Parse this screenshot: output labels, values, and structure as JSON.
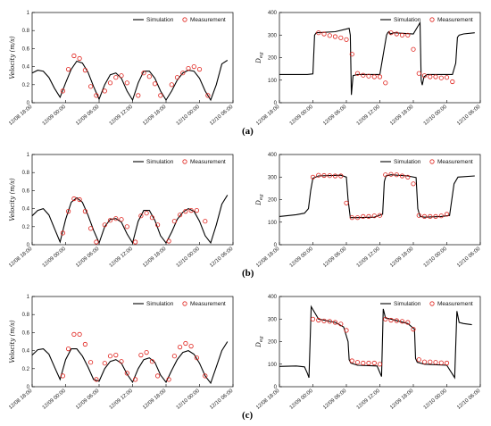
{
  "time_labels": [
    "12/08 18:00",
    "12/09 00:00",
    "12/09 06:00",
    "12/09 12:00",
    "12/09 18:00",
    "12/10 00:00",
    "12/10 06:00"
  ],
  "legend": {
    "simulation": "Simulation",
    "measurement": "Measurement"
  },
  "ylabels": {
    "velocity": "Velocity (m/s)",
    "direction": "D_eg"
  },
  "rows": [
    {
      "label": "(a)"
    },
    {
      "label": "(b)"
    },
    {
      "label": "(c)"
    }
  ],
  "chart_data": [
    {
      "id": "a-velocity",
      "type": "line",
      "xlabel": "",
      "ylabel": "Velocity (m/s)",
      "xticks": [
        "12/08 18:00",
        "12/09 00:00",
        "12/09 06:00",
        "12/09 12:00",
        "12/09 18:00",
        "12/10 00:00",
        "12/10 06:00"
      ],
      "xlim": [
        0,
        36
      ],
      "ylim": [
        0,
        1
      ],
      "yticks": [
        0,
        0.2,
        0.4,
        0.6,
        0.8,
        1
      ],
      "series": [
        {
          "name": "Simulation",
          "style": "line",
          "x": [
            0,
            1,
            2,
            3,
            4,
            5,
            6,
            7,
            8,
            9,
            10,
            11,
            12,
            13,
            14,
            15,
            16,
            17,
            18,
            19,
            20,
            21,
            22,
            23,
            24,
            25,
            26,
            27,
            28,
            29,
            30,
            31,
            32,
            33,
            34,
            35
          ],
          "y": [
            0.33,
            0.36,
            0.35,
            0.28,
            0.16,
            0.06,
            0.22,
            0.37,
            0.46,
            0.44,
            0.34,
            0.18,
            0.04,
            0.2,
            0.31,
            0.33,
            0.27,
            0.13,
            0.03,
            0.22,
            0.35,
            0.35,
            0.27,
            0.13,
            0.03,
            0.13,
            0.25,
            0.33,
            0.36,
            0.35,
            0.27,
            0.13,
            0.03,
            0.2,
            0.43,
            0.47
          ]
        },
        {
          "name": "Measurement",
          "style": "markers",
          "x": [
            5.5,
            6.5,
            7.5,
            8.5,
            9.5,
            10.5,
            11.5,
            13,
            14,
            15,
            16,
            17,
            19,
            20,
            21,
            22,
            23,
            25,
            26,
            27,
            28,
            29,
            30,
            31.5
          ],
          "y": [
            0.13,
            0.37,
            0.52,
            0.49,
            0.36,
            0.18,
            0.08,
            0.13,
            0.22,
            0.28,
            0.3,
            0.22,
            0.08,
            0.33,
            0.29,
            0.21,
            0.08,
            0.2,
            0.28,
            0.33,
            0.38,
            0.4,
            0.37,
            0.08
          ]
        }
      ]
    },
    {
      "id": "a-direction",
      "type": "line",
      "xlabel": "",
      "ylabel": "D_eg",
      "xticks": [
        "12/08 18:00",
        "12/09 00:00",
        "12/09 06:00",
        "12/09 12:00",
        "12/09 18:00",
        "12/10 00:00",
        "12/10 06:00"
      ],
      "xlim": [
        0,
        36
      ],
      "ylim": [
        0,
        400
      ],
      "yticks": [
        0,
        100,
        200,
        300,
        400
      ],
      "series": [
        {
          "name": "Simulation",
          "style": "line",
          "x": [
            0,
            5,
            6,
            6.3,
            6.6,
            10,
            12.5,
            12.7,
            12.9,
            13.2,
            14,
            18,
            19.2,
            19.4,
            19.6,
            19.9,
            20.5,
            24,
            25.2,
            25.4,
            25.6,
            25.9,
            26.5,
            31,
            31.6,
            31.9,
            32.2,
            33,
            35
          ],
          "y": [
            125,
            125,
            128,
            300,
            310,
            315,
            330,
            300,
            35,
            120,
            125,
            125,
            300,
            310,
            315,
            305,
            310,
            305,
            355,
            100,
            78,
            115,
            125,
            125,
            175,
            290,
            300,
            305,
            310
          ]
        },
        {
          "name": "Measurement",
          "style": "markers",
          "x": [
            7,
            8,
            9,
            10,
            11,
            12,
            13,
            14,
            15,
            16,
            17,
            18,
            19,
            20,
            21,
            22,
            23,
            24,
            25,
            26,
            27,
            28,
            29,
            30,
            31
          ],
          "y": [
            310,
            305,
            298,
            293,
            288,
            280,
            215,
            130,
            122,
            118,
            115,
            115,
            88,
            310,
            305,
            300,
            300,
            237,
            130,
            120,
            115,
            115,
            110,
            112,
            93
          ]
        }
      ]
    },
    {
      "id": "b-velocity",
      "type": "line",
      "xlabel": "",
      "ylabel": "Velocity (m/s)",
      "xticks": [
        "12/08 18:00",
        "12/09 00:00",
        "12/09 06:00",
        "12/09 12:00",
        "12/09 18:00",
        "12/10 00:00",
        "12/10 06:00"
      ],
      "xlim": [
        0,
        36
      ],
      "ylim": [
        0,
        1
      ],
      "yticks": [
        0,
        0.2,
        0.4,
        0.6,
        0.8,
        1
      ],
      "series": [
        {
          "name": "Simulation",
          "style": "line",
          "x": [
            0,
            1,
            2,
            3,
            4,
            5,
            6,
            7,
            8,
            9,
            10,
            11,
            12,
            13,
            14,
            15,
            16,
            17,
            18,
            19,
            20,
            21,
            22,
            23,
            24,
            25,
            26,
            27,
            28,
            29,
            30,
            31,
            32,
            33,
            34,
            35
          ],
          "y": [
            0.32,
            0.38,
            0.4,
            0.33,
            0.18,
            0.03,
            0.28,
            0.47,
            0.52,
            0.47,
            0.33,
            0.16,
            0.02,
            0.2,
            0.28,
            0.29,
            0.25,
            0.12,
            0.02,
            0.26,
            0.38,
            0.38,
            0.27,
            0.1,
            0.02,
            0.14,
            0.28,
            0.36,
            0.4,
            0.37,
            0.26,
            0.1,
            0.02,
            0.22,
            0.45,
            0.55
          ]
        },
        {
          "name": "Measurement",
          "style": "markers",
          "x": [
            5.5,
            6.5,
            7.5,
            8.5,
            9.5,
            10.5,
            11.5,
            13,
            14,
            15,
            16,
            17,
            18.5,
            19.5,
            20.5,
            21.5,
            22.5,
            24.5,
            25.5,
            26.5,
            27.5,
            28.5,
            29.5,
            31
          ],
          "y": [
            0.13,
            0.37,
            0.51,
            0.5,
            0.37,
            0.18,
            0.03,
            0.22,
            0.27,
            0.29,
            0.28,
            0.2,
            0.03,
            0.32,
            0.35,
            0.3,
            0.22,
            0.04,
            0.26,
            0.33,
            0.37,
            0.38,
            0.38,
            0.26
          ]
        }
      ]
    },
    {
      "id": "b-direction",
      "type": "line",
      "xlabel": "",
      "ylabel": "D_eg",
      "xticks": [
        "12/08 18:00",
        "12/09 00:00",
        "12/09 06:00",
        "12/09 12:00",
        "12/09 18:00",
        "12/10 00:00",
        "12/10 06:00"
      ],
      "xlim": [
        0,
        36
      ],
      "ylim": [
        0,
        400
      ],
      "yticks": [
        0,
        100,
        200,
        300,
        400
      ],
      "series": [
        {
          "name": "Simulation",
          "style": "line",
          "x": [
            0,
            3,
            4.5,
            5.2,
            5.6,
            6,
            7,
            11,
            12,
            12.3,
            12.7,
            14,
            17,
            18.5,
            18.8,
            19.1,
            20,
            23,
            24.5,
            24.8,
            25.2,
            26,
            29,
            30.5,
            31.3,
            32,
            35
          ],
          "y": [
            125,
            133,
            140,
            160,
            240,
            295,
            305,
            308,
            300,
            200,
            120,
            120,
            122,
            135,
            280,
            305,
            310,
            305,
            298,
            160,
            125,
            122,
            125,
            130,
            270,
            300,
            305
          ]
        },
        {
          "name": "Measurement",
          "style": "markers",
          "x": [
            6,
            7,
            8,
            9,
            10,
            11,
            12,
            13,
            14,
            15,
            16,
            17,
            18,
            19,
            20,
            21,
            22,
            23,
            24,
            25,
            26,
            27,
            28,
            29,
            30
          ],
          "y": [
            300,
            308,
            307,
            306,
            305,
            305,
            185,
            120,
            120,
            125,
            125,
            128,
            130,
            310,
            312,
            310,
            305,
            300,
            270,
            130,
            125,
            125,
            125,
            128,
            135
          ]
        }
      ]
    },
    {
      "id": "c-velocity",
      "type": "line",
      "xlabel": "",
      "ylabel": "Velocity (m/s)",
      "xticks": [
        "12/08 18:00",
        "12/09 00:00",
        "12/09 06:00",
        "12/09 12:00",
        "12/09 18:00",
        "12/10 00:00",
        "12/10 06:00"
      ],
      "xlim": [
        0,
        36
      ],
      "ylim": [
        0,
        1
      ],
      "yticks": [
        0,
        0.2,
        0.4,
        0.6,
        0.8,
        1
      ],
      "series": [
        {
          "name": "Simulation",
          "style": "line",
          "x": [
            0,
            1,
            2,
            3,
            4,
            5,
            6,
            7,
            8,
            9,
            10,
            11,
            12,
            13,
            14,
            15,
            16,
            17,
            18,
            19,
            20,
            21,
            22,
            23,
            24,
            25,
            26,
            27,
            28,
            29,
            30,
            31,
            32,
            33,
            34,
            35
          ],
          "y": [
            0.35,
            0.41,
            0.42,
            0.36,
            0.22,
            0.08,
            0.3,
            0.42,
            0.42,
            0.34,
            0.22,
            0.08,
            0.06,
            0.2,
            0.28,
            0.3,
            0.26,
            0.14,
            0.05,
            0.2,
            0.3,
            0.32,
            0.27,
            0.13,
            0.05,
            0.18,
            0.3,
            0.38,
            0.4,
            0.36,
            0.26,
            0.12,
            0.04,
            0.22,
            0.4,
            0.5
          ]
        },
        {
          "name": "Measurement",
          "style": "markers",
          "x": [
            5.5,
            6.5,
            7.5,
            8.5,
            9.5,
            10.5,
            11.5,
            13,
            14,
            15,
            16,
            17,
            18.5,
            19.5,
            20.5,
            21.5,
            22.5,
            24.5,
            25.5,
            26.5,
            27.5,
            28.5,
            29.5,
            31
          ],
          "y": [
            0.12,
            0.42,
            0.58,
            0.58,
            0.47,
            0.27,
            0.08,
            0.26,
            0.34,
            0.35,
            0.28,
            0.15,
            0.08,
            0.35,
            0.38,
            0.28,
            0.12,
            0.08,
            0.34,
            0.44,
            0.48,
            0.45,
            0.32,
            0.12
          ]
        }
      ]
    },
    {
      "id": "c-direction",
      "type": "line",
      "xlabel": "",
      "ylabel": "D_eg",
      "xticks": [
        "12/08 18:00",
        "12/09 00:00",
        "12/09 06:00",
        "12/09 12:00",
        "12/09 18:00",
        "12/10 00:00",
        "12/10 06:00"
      ],
      "xlim": [
        0,
        36
      ],
      "ylim": [
        0,
        400
      ],
      "yticks": [
        0,
        100,
        200,
        300,
        400
      ],
      "series": [
        {
          "name": "Simulation",
          "style": "line",
          "x": [
            0,
            3,
            4.5,
            5,
            5.3,
            5.7,
            7,
            10,
            11.5,
            12.3,
            12.5,
            12.8,
            14,
            17.5,
            18.3,
            18.6,
            19,
            20,
            23,
            24.2,
            24.4,
            24.7,
            26,
            30,
            31.4,
            31.8,
            32.2,
            33,
            34.5
          ],
          "y": [
            90,
            92,
            88,
            60,
            40,
            355,
            300,
            285,
            265,
            200,
            120,
            105,
            95,
            92,
            45,
            345,
            305,
            300,
            280,
            255,
            125,
            108,
            100,
            95,
            40,
            335,
            285,
            280,
            275
          ]
        },
        {
          "name": "Measurement",
          "style": "markers",
          "x": [
            6,
            7,
            8,
            9,
            10,
            11,
            12,
            13,
            14,
            15,
            16,
            17,
            18,
            19,
            20,
            21,
            22,
            23,
            24,
            25,
            26,
            27,
            28,
            29,
            30
          ],
          "y": [
            300,
            295,
            292,
            290,
            285,
            278,
            250,
            115,
            108,
            105,
            105,
            105,
            100,
            300,
            295,
            293,
            290,
            285,
            255,
            120,
            110,
            110,
            108,
            106,
            105
          ]
        }
      ]
    }
  ]
}
